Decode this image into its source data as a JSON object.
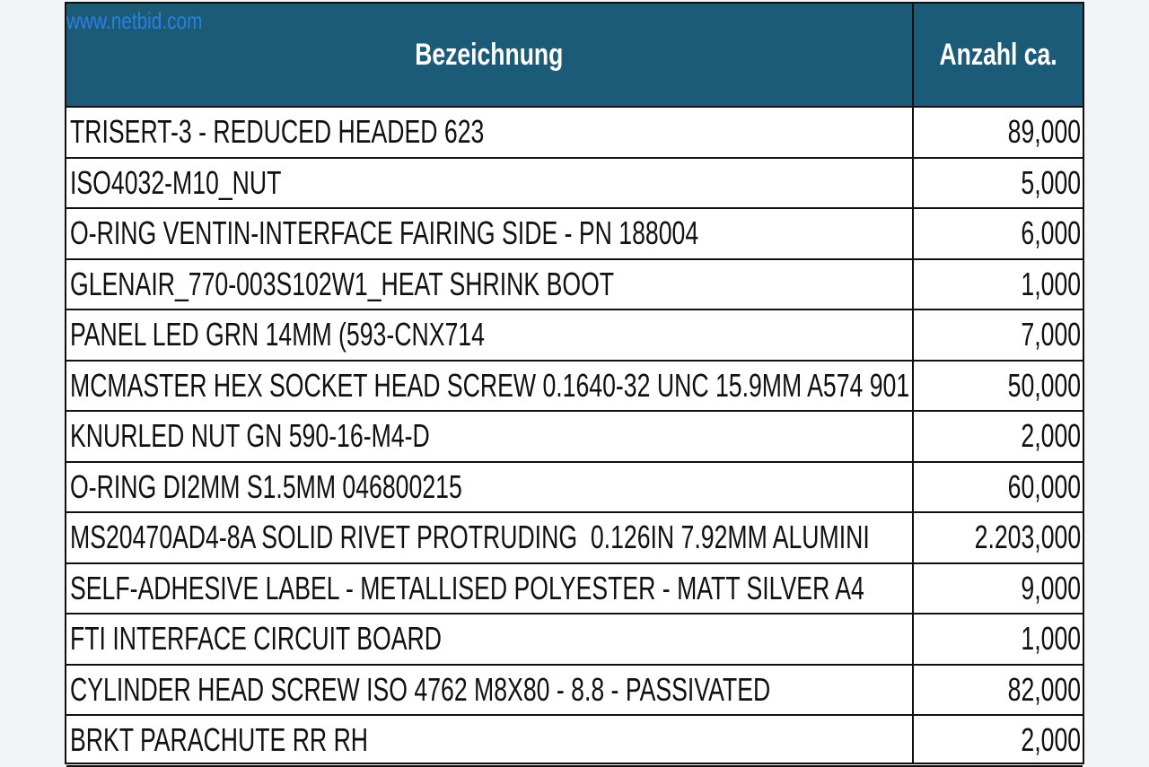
{
  "header": {
    "watermark": "www.netbid.com"
  },
  "table": {
    "columns": [
      "Bezeichnung",
      "Anzahl ca."
    ],
    "rows": [
      [
        "TRISERT-3 - REDUCED HEADED 623",
        "89,000"
      ],
      [
        "ISO4032-M10_NUT",
        "5,000"
      ],
      [
        "O-RING VENTIN-INTERFACE FAIRING SIDE - PN 188004",
        "6,000"
      ],
      [
        "GLENAIR_770-003S102W1_HEAT SHRINK BOOT",
        "1,000"
      ],
      [
        "PANEL LED GRN 14MM (593-CNX714",
        "7,000"
      ],
      [
        "MCMASTER HEX SOCKET HEAD SCREW 0.1640-32 UNC 15.9MM A574 901",
        "50,000"
      ],
      [
        "KNURLED NUT GN 590-16-M4-D",
        "2,000"
      ],
      [
        "O-RING DI2MM S1.5MM 046800215",
        "60,000"
      ],
      [
        "MS20470AD4-8A SOLID RIVET PROTRUDING  0.126IN 7.92MM ALUMINI",
        "2.203,000"
      ],
      [
        "SELF-ADHESIVE LABEL - METALLISED POLYESTER - MATT SILVER A4",
        "9,000"
      ],
      [
        "FTI INTERFACE CIRCUIT BOARD",
        "1,000"
      ],
      [
        "CYLINDER HEAD SCREW ISO 4762 M8X80 - 8.8 - PASSIVATED",
        "82,000"
      ],
      [
        "BRKT PARACHUTE RR RH",
        "2,000"
      ]
    ]
  }
}
